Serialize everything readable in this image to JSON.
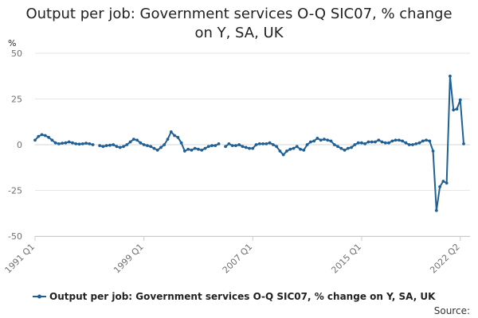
{
  "chart_data": {
    "type": "line",
    "title_lines": [
      "Output per job: Government services O-Q SIC07, % change",
      "on Y, SA, UK"
    ],
    "ylabel": "%",
    "xlabel": "",
    "ylim": [
      -50,
      50
    ],
    "y_ticks": [
      50,
      25,
      0,
      -25,
      -50
    ],
    "x_tick_labels": [
      "1991 Q1",
      "1999 Q1",
      "2007 Q1",
      "2015 Q1",
      "2022 Q2"
    ],
    "grid": true,
    "legend_position": "bottom",
    "source": "Source:",
    "series": [
      {
        "name": "Output per job: Government services O-Q SIC07, % change on Y, SA, UK",
        "color": "#206095",
        "points": [
          [
            "1991 Q1",
            2.5
          ],
          [
            "1991 Q2",
            4.5
          ],
          [
            "1991 Q3",
            5.5
          ],
          [
            "1991 Q4",
            5.0
          ],
          [
            "1992 Q1",
            4.0
          ],
          [
            "1992 Q2",
            2.5
          ],
          [
            "1992 Q3",
            1.0
          ],
          [
            "1992 Q4",
            0.5
          ],
          [
            "1993 Q1",
            0.8
          ],
          [
            "1993 Q2",
            1.0
          ],
          [
            "1993 Q3",
            1.5
          ],
          [
            "1993 Q4",
            1.0
          ],
          [
            "1994 Q1",
            0.5
          ],
          [
            "1994 Q2",
            0.3
          ],
          [
            "1994 Q3",
            0.5
          ],
          [
            "1994 Q4",
            0.8
          ],
          [
            "1995 Q1",
            0.5
          ],
          [
            "1995 Q2",
            0.0
          ],
          [
            "1995 Q3",
            null
          ],
          [
            "1995 Q4",
            -0.5
          ],
          [
            "1996 Q1",
            -1.0
          ],
          [
            "1996 Q2",
            -0.5
          ],
          [
            "1996 Q3",
            -0.3
          ],
          [
            "1996 Q4",
            0.0
          ],
          [
            "1997 Q1",
            -1.0
          ],
          [
            "1997 Q2",
            -1.5
          ],
          [
            "1997 Q3",
            -1.0
          ],
          [
            "1997 Q4",
            0.0
          ],
          [
            "1998 Q1",
            1.5
          ],
          [
            "1998 Q2",
            3.0
          ],
          [
            "1998 Q3",
            2.5
          ],
          [
            "1998 Q4",
            1.0
          ],
          [
            "1999 Q1",
            0.0
          ],
          [
            "1999 Q2",
            -0.5
          ],
          [
            "1999 Q3",
            -1.0
          ],
          [
            "1999 Q4",
            -2.0
          ],
          [
            "2000 Q1",
            -3.0
          ],
          [
            "2000 Q2",
            -1.5
          ],
          [
            "2000 Q3",
            0.0
          ],
          [
            "2000 Q4",
            3.0
          ],
          [
            "2001 Q1",
            7.0
          ],
          [
            "2001 Q2",
            5.0
          ],
          [
            "2001 Q3",
            4.0
          ],
          [
            "2001 Q4",
            1.0
          ],
          [
            "2002 Q1",
            -3.5
          ],
          [
            "2002 Q2",
            -2.5
          ],
          [
            "2002 Q3",
            -3.0
          ],
          [
            "2002 Q4",
            -2.0
          ],
          [
            "2003 Q1",
            -2.5
          ],
          [
            "2003 Q2",
            -3.0
          ],
          [
            "2003 Q3",
            -2.0
          ],
          [
            "2003 Q4",
            -1.0
          ],
          [
            "2004 Q1",
            -0.5
          ],
          [
            "2004 Q2",
            -0.5
          ],
          [
            "2004 Q3",
            0.5
          ],
          [
            "2004 Q4",
            null
          ],
          [
            "2005 Q1",
            -1.0
          ],
          [
            "2005 Q2",
            0.5
          ],
          [
            "2005 Q3",
            -0.5
          ],
          [
            "2005 Q4",
            -0.5
          ],
          [
            "2006 Q1",
            0.0
          ],
          [
            "2006 Q2",
            -1.0
          ],
          [
            "2006 Q3",
            -1.5
          ],
          [
            "2006 Q4",
            -2.0
          ],
          [
            "2007 Q1",
            -2.0
          ],
          [
            "2007 Q2",
            0.0
          ],
          [
            "2007 Q3",
            0.5
          ],
          [
            "2007 Q4",
            0.5
          ],
          [
            "2008 Q1",
            0.5
          ],
          [
            "2008 Q2",
            1.0
          ],
          [
            "2008 Q3",
            0.0
          ],
          [
            "2008 Q4",
            -1.0
          ],
          [
            "2009 Q1",
            -3.5
          ],
          [
            "2009 Q2",
            -5.5
          ],
          [
            "2009 Q3",
            -3.5
          ],
          [
            "2009 Q4",
            -2.5
          ],
          [
            "2010 Q1",
            -2.0
          ],
          [
            "2010 Q2",
            -1.0
          ],
          [
            "2010 Q3",
            -2.5
          ],
          [
            "2010 Q4",
            -3.0
          ],
          [
            "2011 Q1",
            0.0
          ],
          [
            "2011 Q2",
            1.5
          ],
          [
            "2011 Q3",
            2.0
          ],
          [
            "2011 Q4",
            3.5
          ],
          [
            "2012 Q1",
            2.5
          ],
          [
            "2012 Q2",
            3.0
          ],
          [
            "2012 Q3",
            2.5
          ],
          [
            "2012 Q4",
            2.0
          ],
          [
            "2013 Q1",
            0.0
          ],
          [
            "2013 Q2",
            -1.0
          ],
          [
            "2013 Q3",
            -2.0
          ],
          [
            "2013 Q4",
            -3.0
          ],
          [
            "2014 Q1",
            -2.0
          ],
          [
            "2014 Q2",
            -1.5
          ],
          [
            "2014 Q3",
            0.0
          ],
          [
            "2014 Q4",
            1.0
          ],
          [
            "2015 Q1",
            1.0
          ],
          [
            "2015 Q2",
            0.5
          ],
          [
            "2015 Q3",
            1.5
          ],
          [
            "2015 Q4",
            1.5
          ],
          [
            "2016 Q1",
            1.5
          ],
          [
            "2016 Q2",
            2.5
          ],
          [
            "2016 Q3",
            1.5
          ],
          [
            "2016 Q4",
            1.0
          ],
          [
            "2017 Q1",
            1.0
          ],
          [
            "2017 Q2",
            2.0
          ],
          [
            "2017 Q3",
            2.5
          ],
          [
            "2017 Q4",
            2.5
          ],
          [
            "2018 Q1",
            2.0
          ],
          [
            "2018 Q2",
            1.0
          ],
          [
            "2018 Q3",
            0.0
          ],
          [
            "2018 Q4",
            0.0
          ],
          [
            "2019 Q1",
            0.5
          ],
          [
            "2019 Q2",
            1.0
          ],
          [
            "2019 Q3",
            2.0
          ],
          [
            "2019 Q4",
            2.5
          ],
          [
            "2020 Q1",
            2.0
          ],
          [
            "2020 Q2",
            -3.5
          ],
          [
            "2020 Q3",
            -36.0
          ],
          [
            "2020 Q4",
            -23.0
          ],
          [
            "2021 Q1",
            -20.0
          ],
          [
            "2021 Q2",
            -21.0
          ],
          [
            "2021 Q3",
            37.5
          ],
          [
            "2021 Q4",
            19.0
          ],
          [
            "2022 Q1",
            19.5
          ],
          [
            "2022 Q2",
            24.5
          ],
          [
            "2022 Q3",
            0.5
          ]
        ]
      }
    ]
  }
}
